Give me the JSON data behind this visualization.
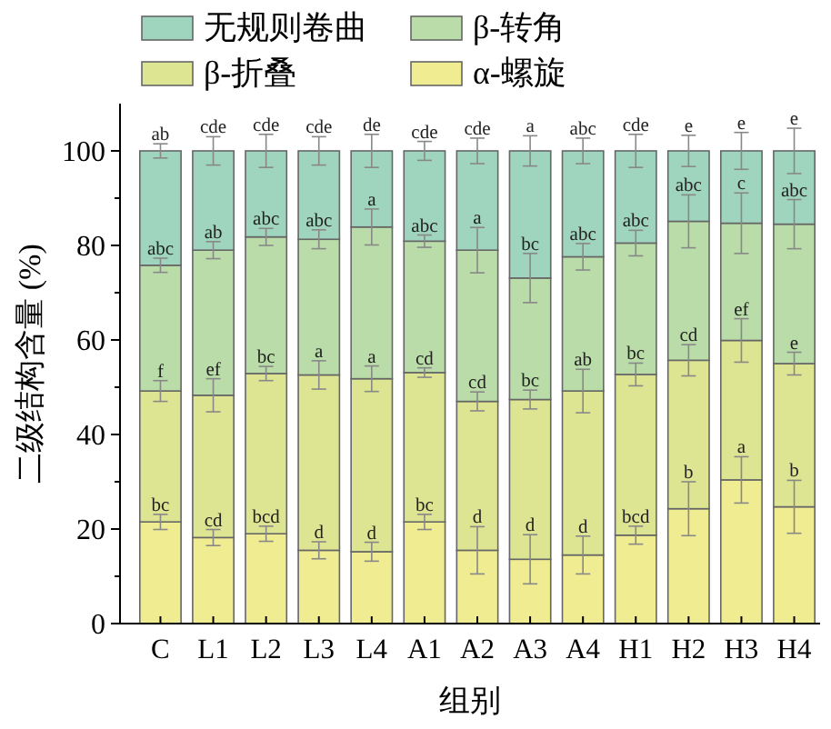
{
  "chart_data": {
    "type": "bar",
    "stacked": true,
    "xlabel": "组别",
    "ylabel": "二级结构含量 (%)",
    "categories": [
      "C",
      "L1",
      "L2",
      "L3",
      "L4",
      "A1",
      "A2",
      "A3",
      "A4",
      "H1",
      "H2",
      "H3",
      "H4"
    ],
    "ylim": [
      0,
      110
    ],
    "yticks": [
      0,
      {
        "value": 10,
        "label": null
      },
      20,
      {
        "value": 30,
        "label": null
      },
      40,
      {
        "value": 50,
        "label": null
      },
      60,
      {
        "value": 70,
        "label": null
      },
      80,
      {
        "value": 90,
        "label": null
      },
      100
    ],
    "legend": "top",
    "series": [
      {
        "name": "α-螺旋",
        "color": "#f0ec92",
        "values": [
          21.5,
          18.2,
          19.0,
          15.5,
          15.2,
          21.5,
          15.5,
          13.6,
          14.5,
          18.7,
          24.3,
          30.4,
          24.7
        ],
        "errors": [
          1.6,
          1.7,
          1.6,
          1.8,
          2,
          1.6,
          5,
          5.2,
          4,
          1.9,
          5.7,
          4.9,
          5.6
        ]
      },
      {
        "name": "β-折叠",
        "color": "#dde592",
        "values": [
          27.7,
          30.1,
          33.9,
          37.1,
          36.6,
          31.6,
          31.5,
          33.8,
          34.7,
          34.0,
          31.4,
          29.5,
          30.3
        ],
        "errors": [
          2.2,
          3.5,
          1.5,
          3,
          2.7,
          1,
          2,
          2,
          4.6,
          2.4,
          3.3,
          4.6,
          2.4
        ]
      },
      {
        "name": "β-转角",
        "color": "#b9dca8",
        "values": [
          26.6,
          30.7,
          28.9,
          28.7,
          32.1,
          27.8,
          32.0,
          25.7,
          28.4,
          27.8,
          29.4,
          24.8,
          29.5
        ],
        "errors": [
          1.5,
          1.8,
          1.8,
          2,
          3.8,
          1.3,
          4.8,
          5.2,
          2.8,
          2.7,
          5.6,
          6.4,
          5.2
        ]
      },
      {
        "name": "无规则卷曲",
        "color": "#9fd5bf",
        "values": [
          24.2,
          21.0,
          18.2,
          18.7,
          16.1,
          19.1,
          21.0,
          26.9,
          22.4,
          19.5,
          14.9,
          15.3,
          15.5
        ],
        "errors": [
          1.5,
          3,
          3.5,
          3,
          3.5,
          2,
          2.7,
          3.2,
          2.7,
          3.5,
          3.3,
          3.9,
          4.8
        ]
      }
    ],
    "annotations": [
      {
        "text": "bc",
        "x": "C",
        "y": 23.1
      },
      {
        "text": "cd",
        "x": "L1",
        "y": 19.9
      },
      {
        "text": "bcd",
        "x": "L2",
        "y": 20.6
      },
      {
        "text": "d",
        "x": "L3",
        "y": 17.3
      },
      {
        "text": "d",
        "x": "L4",
        "y": 17.2
      },
      {
        "text": "bc",
        "x": "A1",
        "y": 23.1
      },
      {
        "text": "d",
        "x": "A2",
        "y": 20.5
      },
      {
        "text": "d",
        "x": "A3",
        "y": 18.8
      },
      {
        "text": "d",
        "x": "A4",
        "y": 18.5
      },
      {
        "text": "bcd",
        "x": "H1",
        "y": 20.6
      },
      {
        "text": "b",
        "x": "H2",
        "y": 30.0
      },
      {
        "text": "a",
        "x": "H3",
        "y": 35.3
      },
      {
        "text": "b",
        "x": "H4",
        "y": 30.3
      },
      {
        "text": "f",
        "x": "C",
        "y": 51.4
      },
      {
        "text": "ef",
        "x": "L1",
        "y": 51.8
      },
      {
        "text": "bc",
        "x": "L2",
        "y": 54.4
      },
      {
        "text": "a",
        "x": "L3",
        "y": 55.6
      },
      {
        "text": "a",
        "x": "L4",
        "y": 54.5
      },
      {
        "text": "cd",
        "x": "A1",
        "y": 54.1
      },
      {
        "text": "cd",
        "x": "A2",
        "y": 49.0
      },
      {
        "text": "bc",
        "x": "A3",
        "y": 49.4
      },
      {
        "text": "ab",
        "x": "A4",
        "y": 53.8
      },
      {
        "text": "bc",
        "x": "H1",
        "y": 55.1
      },
      {
        "text": "cd",
        "x": "H2",
        "y": 59.0
      },
      {
        "text": "ef",
        "x": "H3",
        "y": 64.5
      },
      {
        "text": "e",
        "x": "H4",
        "y": 57.4
      },
      {
        "text": "abc",
        "x": "C",
        "y": 77.3
      },
      {
        "text": "ab",
        "x": "L1",
        "y": 80.8
      },
      {
        "text": "abc",
        "x": "L2",
        "y": 83.6
      },
      {
        "text": "abc",
        "x": "L3",
        "y": 83.3
      },
      {
        "text": "a",
        "x": "L4",
        "y": 87.7
      },
      {
        "text": "abc",
        "x": "A1",
        "y": 82.2
      },
      {
        "text": "a",
        "x": "A2",
        "y": 83.8
      },
      {
        "text": "bc",
        "x": "A3",
        "y": 78.3
      },
      {
        "text": "abc",
        "x": "A4",
        "y": 80.4
      },
      {
        "text": "abc",
        "x": "H1",
        "y": 83.2
      },
      {
        "text": "abc",
        "x": "H2",
        "y": 90.7
      },
      {
        "text": "c",
        "x": "H3",
        "y": 91.1
      },
      {
        "text": "abc",
        "x": "H4",
        "y": 89.7
      },
      {
        "text": "ab",
        "x": "C",
        "y": 101.5
      },
      {
        "text": "cde",
        "x": "L1",
        "y": 103
      },
      {
        "text": "cde",
        "x": "L2",
        "y": 103.5
      },
      {
        "text": "cde",
        "x": "L3",
        "y": 103
      },
      {
        "text": "de",
        "x": "L4",
        "y": 103.5
      },
      {
        "text": "cde",
        "x": "A1",
        "y": 102
      },
      {
        "text": "cde",
        "x": "A2",
        "y": 102.7
      },
      {
        "text": "a",
        "x": "A3",
        "y": 103.2
      },
      {
        "text": "abc",
        "x": "A4",
        "y": 102.7
      },
      {
        "text": "cde",
        "x": "H1",
        "y": 103.5
      },
      {
        "text": "e",
        "x": "H2",
        "y": 103.3
      },
      {
        "text": "e",
        "x": "H3",
        "y": 103.9
      },
      {
        "text": "e",
        "x": "H4",
        "y": 104.8
      }
    ]
  }
}
